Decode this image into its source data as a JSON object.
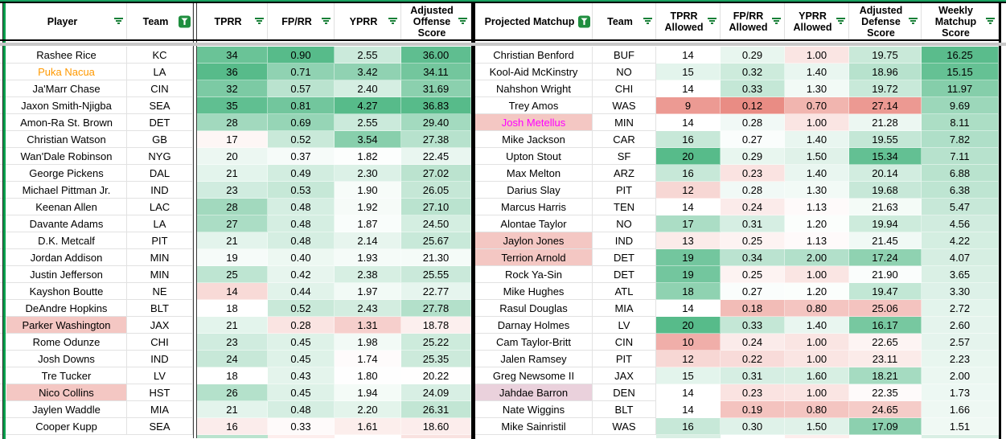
{
  "colors": {
    "heatmap_green": "#57bb8a",
    "heatmap_red": "#e67c73",
    "filter_icon_green": "#188038",
    "filter_active_bg": "#1e8e3e",
    "highlight_pink": "#f4c7c3",
    "highlight_mauve": "#ead1dc",
    "player_text_orange": "#ff9900",
    "matchup_text_magenta": "#ff00ff",
    "top_line_green": "#1aa160",
    "left_line_green": "#0ba04e",
    "frozen_shadow_gray": "#c7c7c7",
    "gridline_gray": "#e2e2e2"
  },
  "left_table": {
    "columns": [
      {
        "label": "Player",
        "filter": "inactive"
      },
      {
        "label": "Team",
        "filter": "active"
      },
      {
        "label": "TPRR",
        "filter": "inactive"
      },
      {
        "label": "FP/RR",
        "filter": "inactive"
      },
      {
        "label": "YPRR",
        "filter": "inactive"
      },
      {
        "label": "Adjusted Offense Score",
        "filter": "inactive"
      }
    ],
    "scales": {
      "tprr": {
        "min": 4,
        "mid": 18,
        "max": 36
      },
      "fprr": {
        "min": 0.05,
        "mid": 0.34,
        "max": 0.9
      },
      "yprr": {
        "min": 0.5,
        "mid": 1.78,
        "max": 4.27
      },
      "adj_off": {
        "min": 8,
        "mid": 20.3,
        "max": 36.83
      }
    },
    "rows": [
      {
        "player": "Rashee Rice",
        "team": "KC",
        "tprr": "34",
        "fprr": "0.90",
        "yprr": "2.55",
        "adj_off": "36.00"
      },
      {
        "player": "Puka Nacua",
        "team": "LA",
        "tprr": "36",
        "fprr": "0.71",
        "yprr": "3.42",
        "adj_off": "34.11",
        "player_color": "#ff9900"
      },
      {
        "player": "Ja'Marr Chase",
        "team": "CIN",
        "tprr": "32",
        "fprr": "0.57",
        "yprr": "2.40",
        "adj_off": "31.69"
      },
      {
        "player": "Jaxon Smith-Njigba",
        "team": "SEA",
        "tprr": "35",
        "fprr": "0.81",
        "yprr": "4.27",
        "adj_off": "36.83"
      },
      {
        "player": "Amon-Ra St. Brown",
        "team": "DET",
        "tprr": "28",
        "fprr": "0.69",
        "yprr": "2.55",
        "adj_off": "29.40"
      },
      {
        "player": "Christian Watson",
        "team": "GB",
        "tprr": "17",
        "fprr": "0.52",
        "yprr": "3.54",
        "adj_off": "27.38"
      },
      {
        "player": "Wan'Dale Robinson",
        "team": "NYG",
        "tprr": "20",
        "fprr": "0.37",
        "yprr": "1.82",
        "adj_off": "22.45"
      },
      {
        "player": "George Pickens",
        "team": "DAL",
        "tprr": "21",
        "fprr": "0.49",
        "yprr": "2.30",
        "adj_off": "27.02"
      },
      {
        "player": "Michael Pittman Jr.",
        "team": "IND",
        "tprr": "23",
        "fprr": "0.53",
        "yprr": "1.90",
        "adj_off": "26.05"
      },
      {
        "player": "Keenan Allen",
        "team": "LAC",
        "tprr": "28",
        "fprr": "0.48",
        "yprr": "1.92",
        "adj_off": "27.10"
      },
      {
        "player": "Davante Adams",
        "team": "LA",
        "tprr": "27",
        "fprr": "0.48",
        "yprr": "1.87",
        "adj_off": "24.50"
      },
      {
        "player": "D.K. Metcalf",
        "team": "PIT",
        "tprr": "21",
        "fprr": "0.48",
        "yprr": "2.14",
        "adj_off": "25.67"
      },
      {
        "player": "Jordan Addison",
        "team": "MIN",
        "tprr": "19",
        "fprr": "0.40",
        "yprr": "1.93",
        "adj_off": "21.30"
      },
      {
        "player": "Justin Jefferson",
        "team": "MIN",
        "tprr": "25",
        "fprr": "0.42",
        "yprr": "2.38",
        "adj_off": "25.55"
      },
      {
        "player": "Kayshon Boutte",
        "team": "NE",
        "tprr": "14",
        "fprr": "0.44",
        "yprr": "1.97",
        "adj_off": "22.77"
      },
      {
        "player": "DeAndre Hopkins",
        "team": "BLT",
        "tprr": "18",
        "fprr": "0.52",
        "yprr": "2.43",
        "adj_off": "27.78"
      },
      {
        "player": "Parker Washington",
        "team": "JAX",
        "tprr": "21",
        "fprr": "0.28",
        "yprr": "1.31",
        "adj_off": "18.78",
        "player_bg": "#f4c7c3"
      },
      {
        "player": "Rome Odunze",
        "team": "CHI",
        "tprr": "23",
        "fprr": "0.45",
        "yprr": "1.98",
        "adj_off": "25.22"
      },
      {
        "player": "Josh Downs",
        "team": "IND",
        "tprr": "24",
        "fprr": "0.45",
        "yprr": "1.74",
        "adj_off": "25.35"
      },
      {
        "player": "Tre Tucker",
        "team": "LV",
        "tprr": "18",
        "fprr": "0.43",
        "yprr": "1.80",
        "adj_off": "20.22"
      },
      {
        "player": "Nico Collins",
        "team": "HST",
        "tprr": "26",
        "fprr": "0.45",
        "yprr": "1.94",
        "adj_off": "24.09",
        "player_bg": "#f4c7c3"
      },
      {
        "player": "Jaylen Waddle",
        "team": "MIA",
        "tprr": "21",
        "fprr": "0.48",
        "yprr": "2.20",
        "adj_off": "26.31"
      },
      {
        "player": "Cooper Kupp",
        "team": "SEA",
        "tprr": "16",
        "fprr": "0.33",
        "yprr": "1.61",
        "adj_off": "18.60"
      }
    ],
    "partial_row_colors": [
      "#ffffff",
      "#ffffff",
      "#b9e3ce",
      "#fdeeed",
      "#ffffff",
      "#f9e2e0"
    ]
  },
  "right_table": {
    "columns": [
      {
        "label": "Projected Matchup",
        "filter": "active"
      },
      {
        "label": "Team",
        "filter": "inactive"
      },
      {
        "label": "TPRR Allowed",
        "filter": "inactive"
      },
      {
        "label": "FP/RR Allowed",
        "filter": "inactive"
      },
      {
        "label": "YPRR Allowed",
        "filter": "inactive"
      },
      {
        "label": "Adjusted Defense Score",
        "filter": "inactive"
      },
      {
        "label": "Weekly Matchup Score",
        "filter": "inactive"
      }
    ],
    "scales": {
      "tprr_allowed": {
        "min": 7.5,
        "mid": 14,
        "max": 20
      },
      "fprr_allowed": {
        "min": 0.1,
        "mid": 0.265,
        "max": 0.45
      },
      "yprr_allowed": {
        "min": 0.35,
        "mid": 1.16,
        "max": 3.0
      },
      "adj_def": {
        "min": 14.8,
        "mid": 22.1,
        "max": 28.6,
        "invert": true
      },
      "weekly": {
        "min": -16,
        "mid": 0,
        "max": 16.5
      }
    },
    "rows": [
      {
        "matchup": "Christian Benford",
        "team": "BUF",
        "tprr_allowed": "14",
        "fprr_allowed": "0.29",
        "yprr_allowed": "1.00",
        "adj_def": "19.75",
        "weekly": "16.25"
      },
      {
        "matchup": "Kool-Aid McKinstry",
        "team": "NO",
        "tprr_allowed": "15",
        "fprr_allowed": "0.32",
        "yprr_allowed": "1.40",
        "adj_def": "18.96",
        "weekly": "15.15"
      },
      {
        "matchup": "Nahshon Wright",
        "team": "CHI",
        "tprr_allowed": "14",
        "fprr_allowed": "0.33",
        "yprr_allowed": "1.30",
        "adj_def": "19.72",
        "weekly": "11.97"
      },
      {
        "matchup": "Trey Amos",
        "team": "WAS",
        "tprr_allowed": "9",
        "fprr_allowed": "0.12",
        "yprr_allowed": "0.70",
        "adj_def": "27.14",
        "weekly": "9.69"
      },
      {
        "matchup": "Josh Metellus",
        "team": "MIN",
        "tprr_allowed": "14",
        "fprr_allowed": "0.28",
        "yprr_allowed": "1.00",
        "adj_def": "21.28",
        "weekly": "8.11",
        "matchup_bg": "#f4c7c3",
        "matchup_color": "#ff00ff"
      },
      {
        "matchup": "Mike Jackson",
        "team": "CAR",
        "tprr_allowed": "16",
        "fprr_allowed": "0.27",
        "yprr_allowed": "1.40",
        "adj_def": "19.55",
        "weekly": "7.82"
      },
      {
        "matchup": "Upton Stout",
        "team": "SF",
        "tprr_allowed": "20",
        "fprr_allowed": "0.29",
        "yprr_allowed": "1.50",
        "adj_def": "15.34",
        "weekly": "7.11"
      },
      {
        "matchup": "Max Melton",
        "team": "ARZ",
        "tprr_allowed": "16",
        "fprr_allowed": "0.23",
        "yprr_allowed": "1.40",
        "adj_def": "20.14",
        "weekly": "6.88"
      },
      {
        "matchup": "Darius Slay",
        "team": "PIT",
        "tprr_allowed": "12",
        "fprr_allowed": "0.28",
        "yprr_allowed": "1.30",
        "adj_def": "19.68",
        "weekly": "6.38"
      },
      {
        "matchup": "Marcus Harris",
        "team": "TEN",
        "tprr_allowed": "14",
        "fprr_allowed": "0.24",
        "yprr_allowed": "1.13",
        "adj_def": "21.63",
        "weekly": "5.47"
      },
      {
        "matchup": "Alontae Taylor",
        "team": "NO",
        "tprr_allowed": "17",
        "fprr_allowed": "0.31",
        "yprr_allowed": "1.20",
        "adj_def": "19.94",
        "weekly": "4.56"
      },
      {
        "matchup": "Jaylon Jones",
        "team": "IND",
        "tprr_allowed": "13",
        "fprr_allowed": "0.25",
        "yprr_allowed": "1.13",
        "adj_def": "21.45",
        "weekly": "4.22",
        "matchup_bg": "#f4c7c3"
      },
      {
        "matchup": "Terrion Arnold",
        "team": "DET",
        "tprr_allowed": "19",
        "fprr_allowed": "0.34",
        "yprr_allowed": "2.00",
        "adj_def": "17.24",
        "weekly": "4.07",
        "matchup_bg": "#f4c7c3"
      },
      {
        "matchup": "Rock Ya-Sin",
        "team": "DET",
        "tprr_allowed": "19",
        "fprr_allowed": "0.25",
        "yprr_allowed": "1.00",
        "adj_def": "21.90",
        "weekly": "3.65"
      },
      {
        "matchup": "Mike Hughes",
        "team": "ATL",
        "tprr_allowed": "18",
        "fprr_allowed": "0.27",
        "yprr_allowed": "1.20",
        "adj_def": "19.47",
        "weekly": "3.30"
      },
      {
        "matchup": "Rasul Douglas",
        "team": "MIA",
        "tprr_allowed": "14",
        "fprr_allowed": "0.18",
        "yprr_allowed": "0.80",
        "adj_def": "25.06",
        "weekly": "2.72"
      },
      {
        "matchup": "Darnay Holmes",
        "team": "LV",
        "tprr_allowed": "20",
        "fprr_allowed": "0.33",
        "yprr_allowed": "1.40",
        "adj_def": "16.17",
        "weekly": "2.60"
      },
      {
        "matchup": "Cam Taylor-Britt",
        "team": "CIN",
        "tprr_allowed": "10",
        "fprr_allowed": "0.24",
        "yprr_allowed": "1.00",
        "adj_def": "22.65",
        "weekly": "2.57"
      },
      {
        "matchup": "Jalen Ramsey",
        "team": "PIT",
        "tprr_allowed": "12",
        "fprr_allowed": "0.22",
        "yprr_allowed": "1.00",
        "adj_def": "23.11",
        "weekly": "2.23"
      },
      {
        "matchup": "Greg Newsome II",
        "team": "JAX",
        "tprr_allowed": "15",
        "fprr_allowed": "0.31",
        "yprr_allowed": "1.60",
        "adj_def": "18.21",
        "weekly": "2.00"
      },
      {
        "matchup": "Jahdae Barron",
        "team": "DEN",
        "tprr_allowed": "14",
        "fprr_allowed": "0.23",
        "yprr_allowed": "1.00",
        "adj_def": "22.35",
        "weekly": "1.73",
        "matchup_bg": "#ead1dc"
      },
      {
        "matchup": "Nate Wiggins",
        "team": "BLT",
        "tprr_allowed": "14",
        "fprr_allowed": "0.19",
        "yprr_allowed": "0.80",
        "adj_def": "24.65",
        "weekly": "1.66"
      },
      {
        "matchup": "Mike Sainristil",
        "team": "WAS",
        "tprr_allowed": "16",
        "fprr_allowed": "0.30",
        "yprr_allowed": "1.50",
        "adj_def": "17.09",
        "weekly": "1.51"
      }
    ],
    "partial_row_colors": [
      "#ffffff",
      "#ffffff",
      "#d9efe4",
      "#ffffff",
      "#fdeeed",
      "#ffffff",
      "#d9efe4"
    ]
  }
}
